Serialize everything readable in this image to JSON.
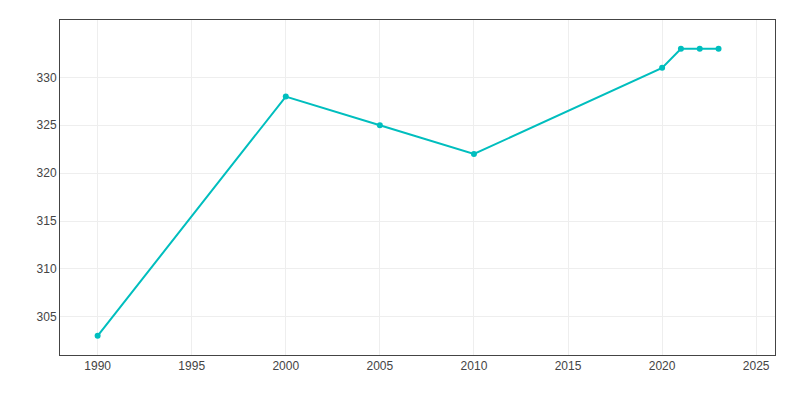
{
  "chart_data": {
    "type": "line",
    "x": [
      1990,
      2000,
      2005,
      2010,
      2020,
      2021,
      2022,
      2023
    ],
    "values": [
      303,
      328,
      325,
      322,
      331,
      333,
      333,
      333
    ],
    "color": "#00BEBE",
    "marker": "circle",
    "xlim": [
      1988,
      2026
    ],
    "ylim": [
      301,
      336
    ],
    "xticks": [
      1990,
      1995,
      2000,
      2005,
      2010,
      2015,
      2020,
      2025
    ],
    "yticks": [
      305,
      310,
      315,
      320,
      325,
      330
    ],
    "grid": true
  }
}
